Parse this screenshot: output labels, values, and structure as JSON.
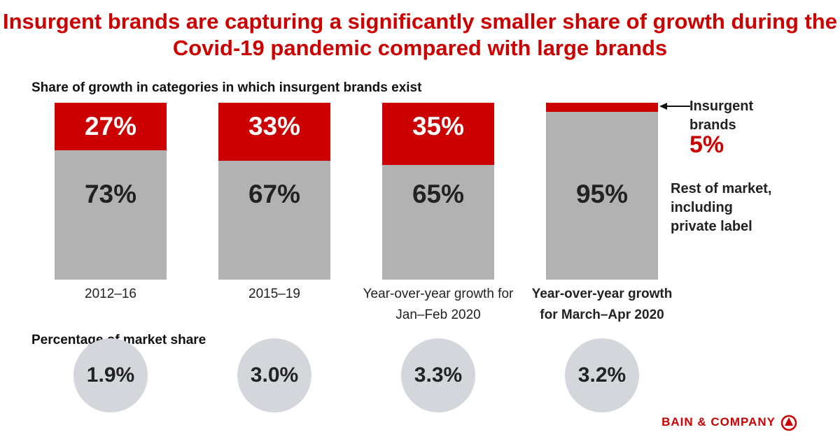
{
  "chart_data": {
    "type": "stacked_bar",
    "title": "Insurgent brands are capturing a significantly smaller share of growth during the Covid-19 pandemic compared with large brands",
    "subtitle": "Share of growth in categories in which insurgent brands exist",
    "categories": [
      "2012–16",
      "2015–19",
      "Year-over-year growth for Jan–Feb 2020",
      "Year-over-year growth for March–Apr 2020"
    ],
    "ylim": [
      0,
      100
    ],
    "series": [
      {
        "name": "Insurgent brands",
        "color": "#cc0000",
        "values": [
          27,
          33,
          35,
          5
        ],
        "value_labels": [
          "27%",
          "33%",
          "35%",
          "5%"
        ]
      },
      {
        "name": "Rest of market, including private label",
        "color": "#b2b2b2",
        "values": [
          73,
          67,
          65,
          95
        ],
        "value_labels": [
          "73%",
          "67%",
          "65%",
          "95%"
        ]
      }
    ],
    "market_share": {
      "title": "Percentage of market share",
      "values": [
        1.9,
        3.0,
        3.3,
        3.2
      ],
      "value_labels": [
        "1.9%",
        "3.0%",
        "3.3%",
        "3.2%"
      ],
      "color": "#d3d7dc"
    },
    "source": "BAIN & COMPANY"
  }
}
